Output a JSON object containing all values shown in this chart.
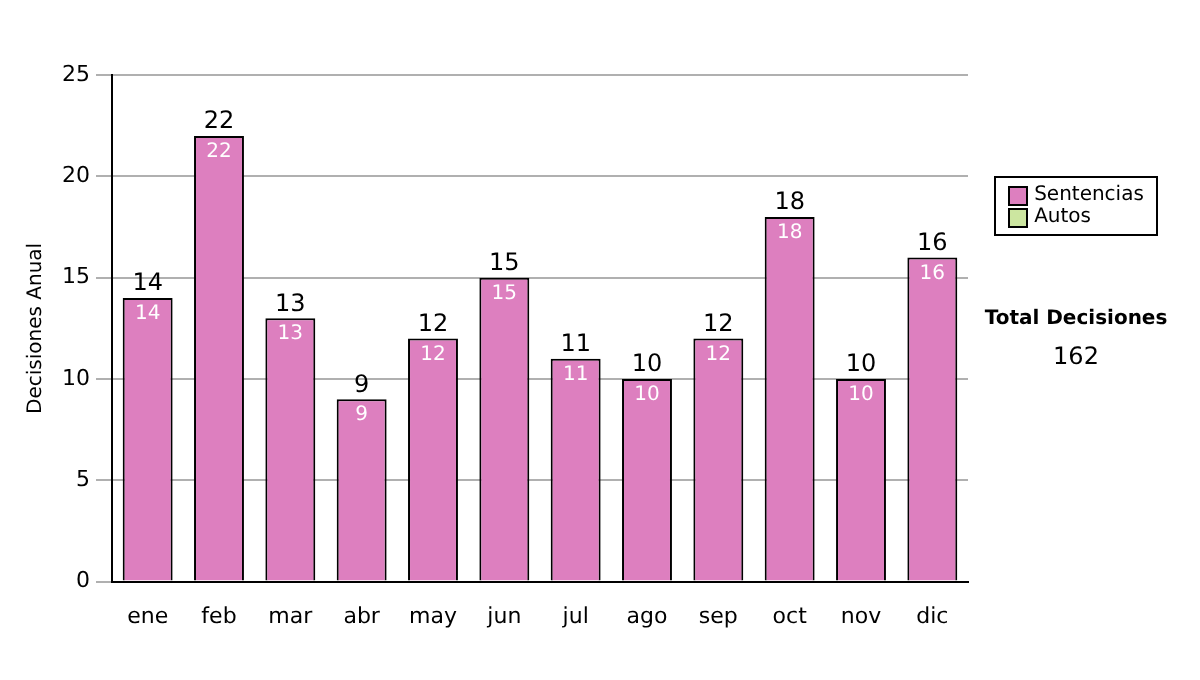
{
  "chart_data": {
    "type": "bar",
    "ylabel": "Decisiones Anual",
    "categories": [
      "ene",
      "feb",
      "mar",
      "abr",
      "may",
      "jun",
      "jul",
      "ago",
      "sep",
      "oct",
      "nov",
      "dic"
    ],
    "series": [
      {
        "name": "Sentencias",
        "color": "#dd7fbf",
        "values": [
          14,
          22,
          13,
          9,
          12,
          15,
          11,
          10,
          12,
          18,
          10,
          16
        ],
        "value_labels": [
          "14",
          "22",
          "13",
          "9",
          "12",
          "15",
          "11",
          "10",
          "12",
          "18",
          "10",
          "16"
        ]
      },
      {
        "name": "Autos",
        "color": "#cce6a0",
        "values": [
          0,
          0,
          0,
          0,
          0,
          0,
          0,
          0,
          0,
          0,
          0,
          0
        ]
      }
    ],
    "stacked": true,
    "totals": [
      "14",
      "22",
      "13",
      "9",
      "12",
      "15",
      "11",
      "10",
      "12",
      "18",
      "10",
      "16"
    ],
    "ylim": [
      0,
      25
    ],
    "yticks": [
      0,
      5,
      10,
      15,
      20,
      25
    ],
    "grid": "y",
    "legend": "right",
    "annotations": [
      "Total Decisiones",
      "162"
    ]
  }
}
